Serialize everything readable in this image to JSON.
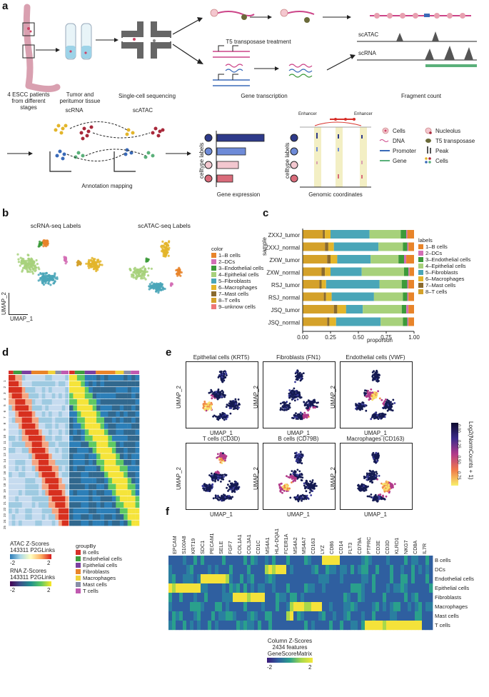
{
  "panels": {
    "a": "a",
    "b": "b",
    "c": "c",
    "d": "d",
    "e": "e",
    "f": "f"
  },
  "colors": {
    "b_cells": "#e8842a",
    "dcs": "#d36fb5",
    "endothelial": "#3c9a3a",
    "epithelial": "#a7d17b",
    "fibroblasts": "#4aa6b8",
    "macrophages": "#e3b52a",
    "mast": "#8a6a2e",
    "t_cells": "#d4a12a",
    "unknown": "#e77",
    "sc_dark": "#2e3a8a",
    "sc_mid": "#6e8bd8",
    "sc_light": "#f3c7cf",
    "sc_pink": "#d96b7a"
  },
  "a": {
    "patients_label": "4 ESCC patients from different stages",
    "tissue_label": "Tumor and peritumor tissue",
    "sequencing_label": "Single-cell sequencing",
    "transposase_label": "T5 transposase treatment",
    "transcription_label": "Gene transcription",
    "fragment_label": "Fragment count",
    "scatac": "scATAC",
    "scrna": "scRNA",
    "mapping_scrna": "scRNA",
    "mapping_scatac": "scATAC",
    "annotation_label": "Annotation mapping",
    "celltype_labels": "celltype labels",
    "gene_expression": "Gene expression",
    "genomic_coordinates": "Genomic coordinates",
    "enhancer": "Enhancer",
    "legend": {
      "cells": "Cells",
      "nucleolus": "Nucleolus",
      "dna": "DNA",
      "t5": "T5 transposase",
      "promoter": "Promoter",
      "peak": "Peak",
      "gene": "Gene",
      "cells2": "Cells"
    }
  },
  "b": {
    "title_rna": "scRNA-seq Labels",
    "title_atac": "scATAC-seq Labels",
    "umap1": "UMAP_1",
    "umap2": "UMAP_2",
    "legend_title": "color",
    "legend": [
      "1–B cells",
      "2–DCs",
      "3–Endothelial cells",
      "4–Epithelial cells",
      "5–Fibroblasts",
      "6–Macrophages",
      "7–Mast cells",
      "8–T cells",
      "9–unknow cells"
    ]
  },
  "chart_data": {
    "type": "bar",
    "title": "",
    "xlabel": "proportion",
    "ylabel": "sample",
    "xticks": [
      "0.00",
      "0.25",
      "0.50",
      "0.75",
      "1.00"
    ],
    "xlim": [
      0,
      1
    ],
    "legend_title": "labels",
    "legend": [
      "1–B cells",
      "2–DCs",
      "3–Endothelial cells",
      "4–Epithelial cells",
      "5–Fibroblasts",
      "6–Macrophages",
      "7–Mast cells",
      "8–T cells"
    ],
    "categories": [
      "ZXXJ_tumor",
      "ZXXJ_normal",
      "ZXW_tumor",
      "ZXW_normal",
      "RSJ_tumor",
      "RSJ_normal",
      "JSQ_tumor",
      "JSQ_normal"
    ],
    "series": [
      {
        "name": "8–T cells",
        "color": "#d4a12a",
        "values": [
          0.18,
          0.2,
          0.22,
          0.17,
          0.15,
          0.19,
          0.28,
          0.22
        ]
      },
      {
        "name": "7–Mast cells",
        "color": "#8a6a2e",
        "values": [
          0.02,
          0.03,
          0.03,
          0.03,
          0.02,
          0.02,
          0.03,
          0.02
        ]
      },
      {
        "name": "6–Macrophages",
        "color": "#e3b52a",
        "values": [
          0.05,
          0.05,
          0.06,
          0.05,
          0.04,
          0.05,
          0.08,
          0.06
        ]
      },
      {
        "name": "5–Fibroblasts",
        "color": "#4aa6b8",
        "values": [
          0.35,
          0.4,
          0.3,
          0.28,
          0.48,
          0.38,
          0.15,
          0.4
        ]
      },
      {
        "name": "4–Epithelial cells",
        "color": "#a7d17b",
        "values": [
          0.28,
          0.22,
          0.25,
          0.38,
          0.2,
          0.26,
          0.35,
          0.2
        ]
      },
      {
        "name": "3–Endothelial cells",
        "color": "#3c9a3a",
        "values": [
          0.05,
          0.04,
          0.05,
          0.04,
          0.05,
          0.04,
          0.04,
          0.04
        ]
      },
      {
        "name": "2–DCs",
        "color": "#d36fb5",
        "values": [
          0.01,
          0.01,
          0.02,
          0.01,
          0.01,
          0.01,
          0.02,
          0.01
        ]
      },
      {
        "name": "1–B cells",
        "color": "#e8842a",
        "values": [
          0.06,
          0.05,
          0.07,
          0.04,
          0.05,
          0.05,
          0.05,
          0.05
        ]
      }
    ]
  },
  "d": {
    "clusters": [
      "1",
      "2",
      "3",
      "4",
      "5",
      "6",
      "7",
      "8",
      "9",
      "10",
      "11",
      "12",
      "13",
      "14",
      "15",
      "16",
      "17",
      "18",
      "19",
      "20",
      "21",
      "22",
      "23",
      "24",
      "25"
    ],
    "atac_title": "ATAC Z-Scores",
    "atac_sub": "143311 P2GLinks",
    "rna_title": "RNA Z-Scores",
    "rna_sub": "143311 P2GLinks",
    "atac_ticks": [
      "-2",
      "2"
    ],
    "rna_ticks": [
      "-2",
      "2"
    ],
    "groupby_title": "groupBy",
    "groupby": [
      {
        "label": "B cells",
        "color": "#d7302a"
      },
      {
        "label": "Endothelial cells",
        "color": "#3f9e3f"
      },
      {
        "label": "Epithelial cells",
        "color": "#7b3fa0"
      },
      {
        "label": "Fibroblasts",
        "color": "#e8842a"
      },
      {
        "label": "Macrophages",
        "color": "#f0d23a"
      },
      {
        "label": "Mast cells",
        "color": "#8a8fa8"
      },
      {
        "label": "T cells",
        "color": "#c05ab0"
      }
    ]
  },
  "e": {
    "panels": [
      "Epithelial cells (KRT5)",
      "Fibroblasts (FN1)",
      "Endothelial cells (VWF)",
      "T cells (CD3D)",
      "B cells (CD79B)",
      "Macrophages (CD163)"
    ],
    "umap1": "UMAP_1",
    "umap2": "UMAP_2",
    "colorbar_title": "Log2(NormCounts + 1)",
    "colorbar_ticks": [
      "0.00",
      "0.25",
      "0.50",
      "0.75"
    ]
  },
  "f": {
    "genes": [
      "EPCAM",
      "S100A8",
      "KRT19",
      "SDC1",
      "PECAM1",
      "SELE",
      "FGF7",
      "COL1A1",
      "COL3A1",
      "CD1C",
      "MS4A1",
      "HLA-DQA1",
      "FCER1A",
      "MS4A2",
      "MS4A7",
      "CD163",
      "LYZ",
      "CD86",
      "CD14",
      "FLT3",
      "CD79A",
      "PTPRC",
      "CD3E",
      "CD3D",
      "KLRD1",
      "NKG7",
      "CD8A",
      "IL7R"
    ],
    "rows": [
      "B cells",
      "DCs",
      "Endothelial cells",
      "Epithelial cells",
      "Fibroblasts",
      "Macrophages",
      "Mast cells",
      "T cells"
    ],
    "legend_title": "Column Z-Scores",
    "legend_features": "2434 features",
    "legend_matrix": "GeneScoreMatrix",
    "legend_ticks": [
      "-2",
      "2"
    ]
  }
}
